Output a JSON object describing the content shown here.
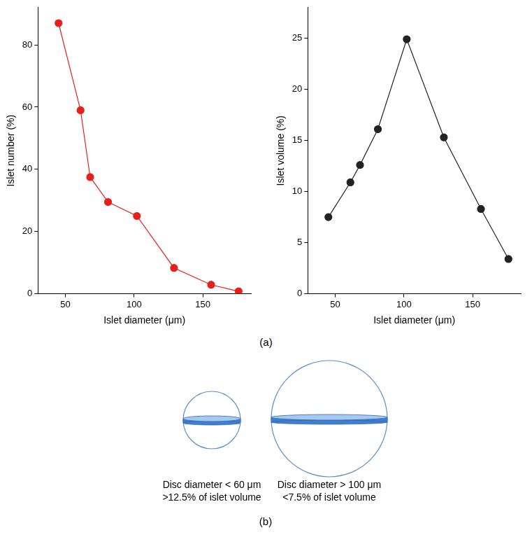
{
  "chart_data": [
    {
      "type": "line",
      "x": [
        45,
        61,
        68,
        81,
        102,
        129,
        156,
        176
      ],
      "values": [
        87,
        59,
        37.5,
        29.5,
        25,
        8.3,
        2.9,
        0.8
      ],
      "color": "#e8201c",
      "marker": "circle",
      "line_style": "solid",
      "x_label": "Islet diameter (μm)",
      "y_label": "Islet number (%)",
      "xlim": [
        30,
        185
      ],
      "xticks": [
        50,
        100,
        150
      ],
      "ylim": [
        0,
        92
      ],
      "yticks": [
        0,
        20,
        40,
        60,
        80
      ],
      "grid": false
    },
    {
      "type": "line",
      "x": [
        45,
        61,
        68,
        81,
        102,
        129,
        156,
        176
      ],
      "values": [
        7.5,
        10.9,
        12.6,
        16.1,
        24.9,
        15.3,
        8.3,
        3.4
      ],
      "color": "#222222",
      "marker": "circle",
      "line_style": "solid",
      "x_label": "Islet diameter (μm)",
      "y_label": "Islet volume (%)",
      "xlim": [
        30,
        185
      ],
      "xticks": [
        50,
        100,
        150
      ],
      "ylim": [
        0,
        28
      ],
      "yticks": [
        0,
        5,
        10,
        15,
        20,
        25
      ],
      "grid": false
    }
  ],
  "panel_labels": [
    "(a)",
    "(b)"
  ],
  "diagram": {
    "items": [
      {
        "caption": [
          "Disc diameter < 60 μm",
          ">12.5% of islet volume"
        ]
      },
      {
        "caption": [
          "Disc diameter > 100 μm",
          "<7.5% of islet volume"
        ]
      }
    ]
  }
}
